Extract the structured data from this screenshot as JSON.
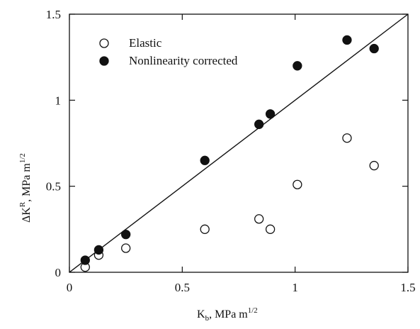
{
  "chart_data": {
    "type": "scatter",
    "title": "",
    "xlabel": {
      "base": "K",
      "sub": "b",
      "unit": ", MPa m",
      "sup": "1/2"
    },
    "ylabel": {
      "prefix": "ΔK",
      "sup_r": "R",
      "unit": ", MPa m",
      "sup": "1/2"
    },
    "xlim": [
      0,
      1.5
    ],
    "ylim": [
      0,
      1.5
    ],
    "xticks": [
      0,
      0.5,
      1,
      1.5
    ],
    "yticks": [
      0,
      0.5,
      1,
      1.5
    ],
    "xtick_labels": [
      "0",
      "0.5",
      "1",
      "1.5"
    ],
    "ytick_labels": [
      "0",
      "0.5",
      "1",
      "1.5"
    ],
    "grid": false,
    "legend_position": "top-left",
    "series": [
      {
        "name": "Elastic",
        "marker": "open-circle",
        "points": [
          [
            0.07,
            0.03
          ],
          [
            0.13,
            0.1
          ],
          [
            0.25,
            0.14
          ],
          [
            0.6,
            0.25
          ],
          [
            0.84,
            0.31
          ],
          [
            0.89,
            0.25
          ],
          [
            1.01,
            0.51
          ],
          [
            1.23,
            0.78
          ],
          [
            1.35,
            0.62
          ]
        ]
      },
      {
        "name": "Nonlinearity corrected",
        "marker": "filled-circle",
        "points": [
          [
            0.07,
            0.07
          ],
          [
            0.13,
            0.13
          ],
          [
            0.25,
            0.22
          ],
          [
            0.6,
            0.65
          ],
          [
            0.84,
            0.86
          ],
          [
            0.89,
            0.92
          ],
          [
            1.01,
            1.2
          ],
          [
            1.23,
            1.35
          ],
          [
            1.35,
            1.3
          ]
        ]
      }
    ],
    "reference_line": {
      "from": [
        0,
        0
      ],
      "to": [
        1.5,
        1.5
      ]
    }
  }
}
